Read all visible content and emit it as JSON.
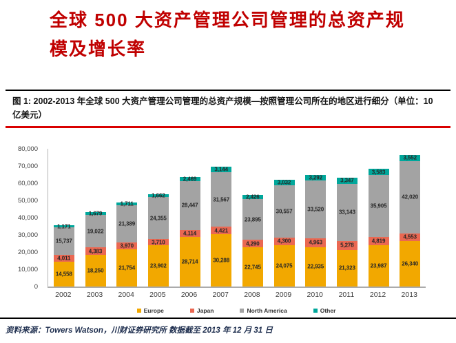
{
  "report": {
    "title_lines": [
      "全球 500 大资产管理公司管理的总资产规",
      "模及增长率"
    ],
    "figure_caption": "图 1:  2002-2013 年全球 500 大资产管理公司管理的总资产规模—按照管理公司所在的地区进行细分（单位：10 亿美元）",
    "source_note": "资料来源：Towers Watson，川财证券研究所  数据截至 2013 年 12 月 31 日"
  },
  "colors": {
    "title_red": "#C00000",
    "caption_rule_red": "#D90000",
    "axis_line": "#B3B3B3",
    "value_label": "#262626",
    "europe": "#F2A800",
    "japan": "#EA6852",
    "north_america": "#A3A3A3",
    "other": "#00A79B"
  },
  "chart_data": {
    "type": "bar",
    "stacked": true,
    "categories": [
      "2002",
      "2003",
      "2004",
      "2005",
      "2006",
      "2007",
      "2008",
      "2009",
      "2010",
      "2011",
      "2012",
      "2013"
    ],
    "series": [
      {
        "name": "Europe",
        "color": "#F2A800",
        "values": [
          14558,
          18250,
          21754,
          23902,
          28714,
          30288,
          22745,
          24075,
          22935,
          21323,
          23987,
          26340
        ]
      },
      {
        "name": "Japan",
        "color": "#EA6852",
        "values": [
          4011,
          4383,
          3970,
          3710,
          4114,
          4421,
          4290,
          4300,
          4963,
          5278,
          4819,
          4553
        ]
      },
      {
        "name": "North America",
        "color": "#A3A3A3",
        "values": [
          15737,
          19022,
          21389,
          24355,
          28447,
          31567,
          23895,
          30557,
          33520,
          33143,
          35905,
          42020
        ]
      },
      {
        "name": "Other",
        "color": "#00A79B",
        "values": [
          1171,
          1679,
          1711,
          1662,
          2469,
          3144,
          2426,
          3032,
          3292,
          3347,
          3583,
          3552
        ]
      }
    ],
    "ylim": [
      0,
      80000
    ],
    "ytick_step": 10000,
    "ytick_labels": [
      "0",
      "10,000",
      "20,000",
      "30,000",
      "40,000",
      "50,000",
      "60,000",
      "70,000",
      "80,000"
    ],
    "grid": false,
    "legend_position": "bottom",
    "value_labels": "every-segment"
  }
}
